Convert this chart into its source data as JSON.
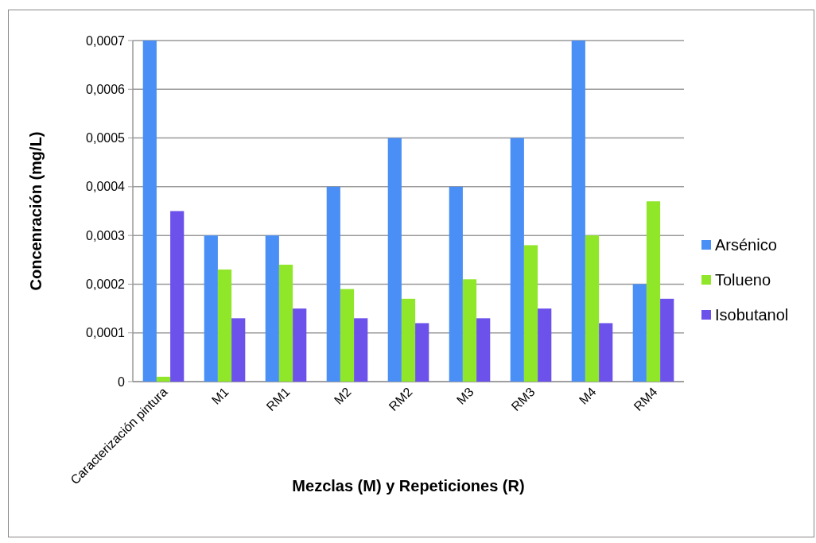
{
  "chart_data": {
    "type": "bar",
    "xlabel": "Mezclas (M) y Repeticiones (R)",
    "ylabel": "Concenración (mg/L)",
    "categories": [
      "Caracterización pintura",
      "M1",
      "RM1",
      "M2",
      "RM2",
      "M3",
      "RM3",
      "M4",
      "RM4"
    ],
    "series": [
      {
        "name": "Arsénico",
        "color": "#4a8ff5",
        "values": [
          0.0007,
          0.0003,
          0.0003,
          0.0004,
          0.0005,
          0.0004,
          0.0005,
          0.0007,
          0.0002
        ]
      },
      {
        "name": "Tolueno",
        "color": "#90e628",
        "values": [
          1e-05,
          0.00023,
          0.00024,
          0.00019,
          0.00017,
          0.00021,
          0.00028,
          0.0003,
          0.00037
        ]
      },
      {
        "name": "Isobutanol",
        "color": "#6c52ea",
        "values": [
          0.00035,
          0.00013,
          0.00015,
          0.00013,
          0.00012,
          0.00013,
          0.00015,
          0.00012,
          0.00017
        ]
      }
    ],
    "ylim": [
      0,
      0.0007
    ],
    "yticks": [
      0,
      {
        "value": 0.0001,
        "label": "0,0001"
      },
      {
        "value": 0.0002,
        "label": "0,0002"
      },
      {
        "value": 0.0003,
        "label": "0,0003"
      },
      {
        "value": 0.0004,
        "label": "0,0004"
      },
      {
        "value": 0.0005,
        "label": "0,0005"
      },
      {
        "value": 0.0006,
        "label": "0,0006"
      },
      {
        "value": 0.0007,
        "label": "0,0007"
      }
    ],
    "grid": "y",
    "legend": "right"
  }
}
